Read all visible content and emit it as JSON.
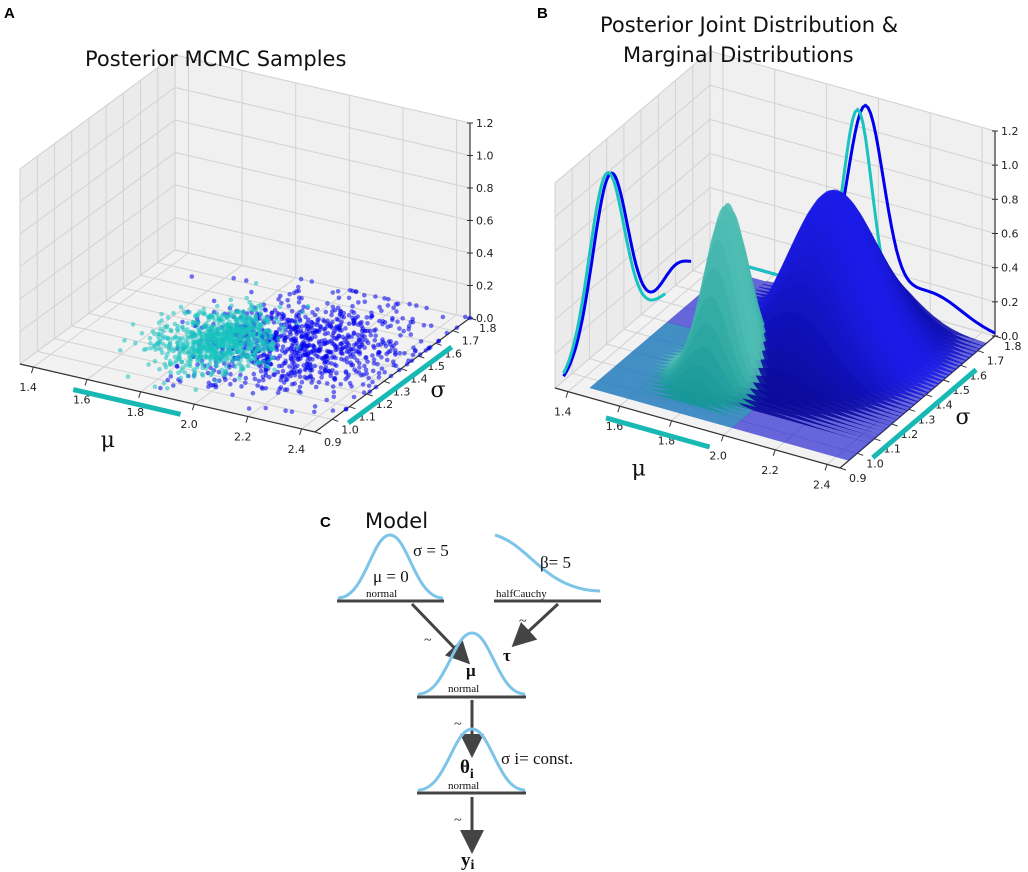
{
  "panels": {
    "a": {
      "label": "A",
      "title": "Posterior MCMC Samples"
    },
    "b": {
      "label": "B",
      "title_line1": "Posterior Joint Distribution &",
      "title_line2": "Marginal Distributions"
    },
    "c": {
      "label": "C",
      "title": "Model"
    }
  },
  "chart_data": [
    {
      "type": "scatter",
      "panel": "A",
      "title": "Posterior MCMC Samples",
      "xlabel": "μ",
      "ylabel": "σ",
      "zlabel": "",
      "xlim": [
        1.35,
        2.45
      ],
      "ylim": [
        0.9,
        1.8
      ],
      "zlim": [
        0,
        1.2
      ],
      "xticks": [
        "1.4",
        "1.6",
        "1.8",
        "2.0",
        "2.2",
        "2.4"
      ],
      "yticks": [
        "0.9",
        "1.0",
        "1.1",
        "1.2",
        "1.3",
        "1.4",
        "1.5",
        "1.6",
        "1.7",
        "1.8"
      ],
      "zticks": [
        "0.0",
        "0.2",
        "0.4",
        "0.6",
        "0.8",
        "1.0",
        "1.2"
      ],
      "grid": true,
      "series": [
        {
          "color": "#0000ee",
          "samples": 900,
          "mu_mean": 2.08,
          "mu_sd": 0.17,
          "sigma_mean": 1.42,
          "sigma_sd": 0.17
        },
        {
          "color": "#18c3c0",
          "samples": 900,
          "mu_mean": 1.84,
          "mu_sd": 0.1,
          "sigma_mean": 1.33,
          "sigma_sd": 0.12
        }
      ],
      "intervals": {
        "color": "#18b8b4",
        "mu": [
          1.6,
          2.0
        ],
        "sigma": [
          1.0,
          1.6
        ]
      }
    },
    {
      "type": "surface",
      "panel": "B",
      "title": "Posterior Joint Distribution & Marginal Distributions",
      "xlabel": "μ",
      "ylabel": "σ",
      "zlabel": "",
      "xlim": [
        1.35,
        2.45
      ],
      "ylim": [
        0.9,
        1.8
      ],
      "zlim": [
        0,
        1.2
      ],
      "xticks": [
        "1.4",
        "1.6",
        "1.8",
        "2.0",
        "2.2",
        "2.4"
      ],
      "yticks": [
        "0.9",
        "1.0",
        "1.1",
        "1.2",
        "1.3",
        "1.4",
        "1.5",
        "1.6",
        "1.7",
        "1.8"
      ],
      "zticks": [
        "0.0",
        "0.2",
        "0.4",
        "0.6",
        "0.8",
        "1.0",
        "1.2"
      ],
      "grid": true,
      "surfaces": [
        {
          "color": "#1010e0",
          "peak_mu": 2.02,
          "peak_sigma": 1.5,
          "peak_height": 0.92,
          "mu_sd": 0.14,
          "sigma_sd": 0.16
        },
        {
          "color": "#1fb5b0",
          "peak_mu": 1.8,
          "peak_sigma": 1.22,
          "peak_height": 1.0,
          "mu_sd": 0.07,
          "sigma_sd": 0.08
        }
      ],
      "marginals": {
        "sigma": [
          {
            "color": "#0000ee",
            "peak_sigma": 1.22,
            "peak": 0.98
          },
          {
            "color": "#18c3c0",
            "peak_sigma": 1.2,
            "peak": 1.0
          }
        ],
        "mu": [
          {
            "color": "#0000ee",
            "peak_mu": 1.95,
            "peak": 1.12
          },
          {
            "color": "#18c3c0",
            "peak_mu": 1.92,
            "peak": 1.1
          }
        ]
      },
      "intervals": {
        "color": "#18b8b4",
        "mu": [
          1.6,
          2.0
        ],
        "sigma": [
          1.0,
          1.6
        ]
      }
    }
  ],
  "model": {
    "curve_color": "#7cc4e8",
    "node1": {
      "param1": "σ = 5",
      "param2": "μ = 0",
      "dist": "normal"
    },
    "node2": {
      "param": "β= 5",
      "dist": "halfCauchy"
    },
    "node3": {
      "var": "μ",
      "side": "τ",
      "dist": "normal"
    },
    "node4": {
      "var": "θ",
      "sub": "i",
      "side": "σ i= const.",
      "dist": "normal"
    },
    "output": {
      "var": "y",
      "sub": "i"
    },
    "tilde": "~"
  }
}
